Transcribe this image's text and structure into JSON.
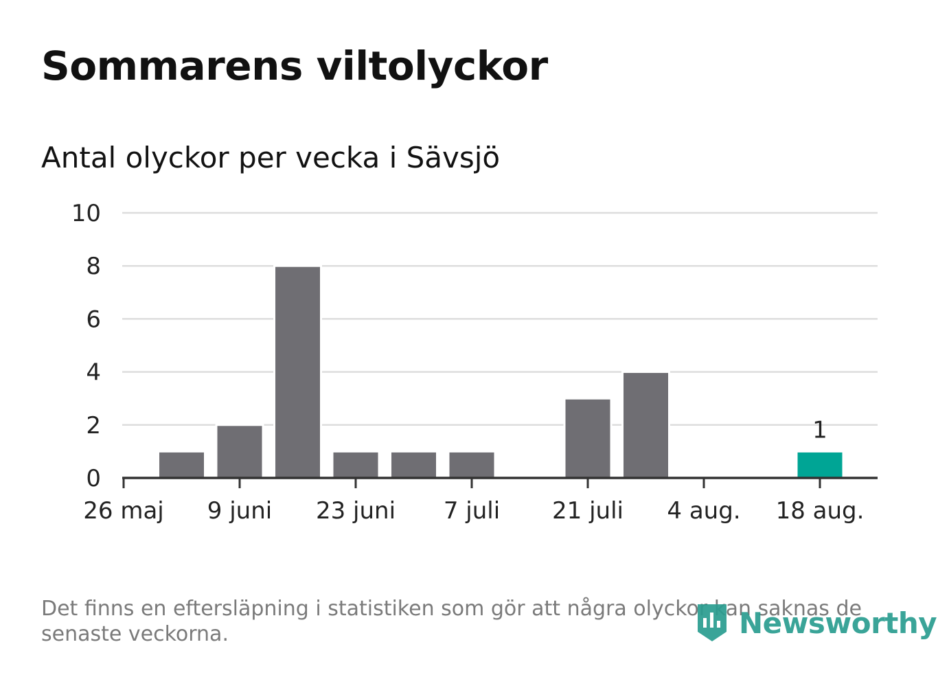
{
  "title": "Sommarens viltolyckor",
  "subtitle": "Antal olyckor per vecka i Sävsjö",
  "footnote": "Det finns en eftersläpning i statistiken som gör att några olyckor kan saknas de senaste veckorna.",
  "brand": {
    "name": "Newsworthy",
    "icon": "newsworthy-logo-icon"
  },
  "colors": {
    "bar": "#6f6e73",
    "highlight": "#00a595",
    "grid": "#dddddd",
    "axis": "#333333",
    "brand": "#2a9d90"
  },
  "chart_data": {
    "type": "bar",
    "title": "Sommarens viltolyckor",
    "subtitle": "Antal olyckor per vecka i Sävsjö",
    "xlabel": "",
    "ylabel": "",
    "ylim": [
      0,
      10
    ],
    "yticks": [
      0,
      2,
      4,
      6,
      8,
      10
    ],
    "grid": true,
    "x_tick_labels": [
      "26 maj",
      "9 juni",
      "23 juni",
      "7 juli",
      "21 juli",
      "4 aug.",
      "18 aug."
    ],
    "categories": [
      "2 juni",
      "9 juni",
      "16 juni",
      "23 juni",
      "30 juni",
      "7 juli",
      "14 juli",
      "21 juli",
      "28 juli",
      "4 aug.",
      "11 aug.",
      "18 aug."
    ],
    "values": [
      1,
      2,
      8,
      1,
      1,
      1,
      0,
      3,
      4,
      0,
      0,
      1
    ],
    "highlight_index": 11,
    "data_labels": [
      {
        "index": 11,
        "text": "1"
      }
    ]
  }
}
